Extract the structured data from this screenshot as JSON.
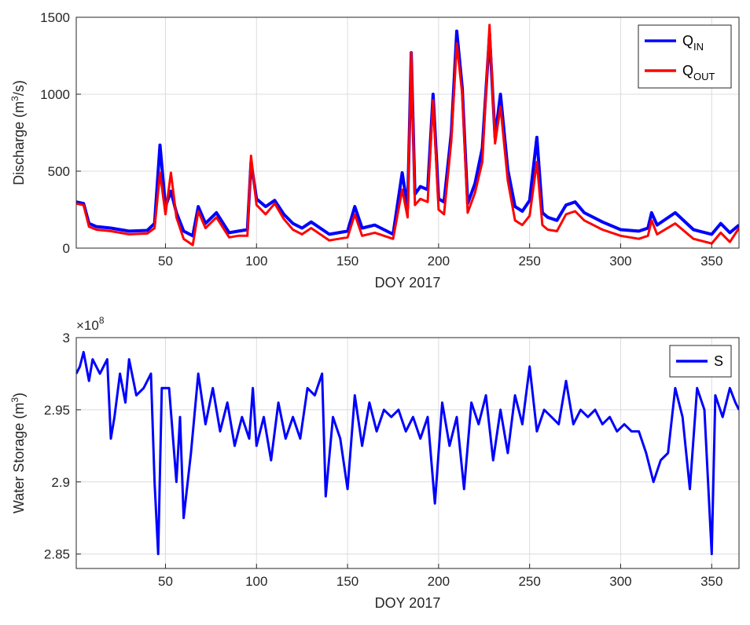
{
  "chart_data": [
    {
      "type": "line",
      "xlabel": "DOY 2017",
      "ylabel": "Discharge (m³/s)",
      "ylabel_parts": {
        "main": "Discharge (m",
        "sup": "3",
        "tail": "/s)"
      },
      "xlim": [
        1,
        365
      ],
      "ylim": [
        0,
        1500
      ],
      "xticks": [
        50,
        100,
        150,
        200,
        250,
        300,
        350
      ],
      "yticks": [
        0,
        500,
        1000,
        1500
      ],
      "grid": true,
      "legend_position": "top-right",
      "series": [
        {
          "name": "Q_IN",
          "label_main": "Q",
          "label_sub": "IN",
          "color": "#0000ff",
          "x": [
            1,
            5,
            8,
            12,
            20,
            30,
            40,
            44,
            47,
            50,
            53,
            56,
            60,
            65,
            68,
            72,
            78,
            85,
            90,
            95,
            97,
            100,
            105,
            110,
            115,
            120,
            125,
            130,
            140,
            150,
            154,
            158,
            165,
            170,
            175,
            180,
            183,
            185,
            187,
            190,
            194,
            197,
            200,
            203,
            207,
            210,
            213,
            216,
            220,
            224,
            228,
            231,
            234,
            238,
            242,
            246,
            250,
            254,
            257,
            260,
            265,
            270,
            275,
            280,
            290,
            300,
            310,
            315,
            317,
            320,
            330,
            340,
            350,
            355,
            360,
            365
          ],
          "values": [
            300,
            290,
            160,
            140,
            130,
            110,
            115,
            160,
            670,
            270,
            370,
            230,
            110,
            80,
            270,
            160,
            230,
            100,
            110,
            120,
            560,
            320,
            270,
            310,
            220,
            160,
            130,
            170,
            90,
            110,
            270,
            130,
            150,
            120,
            90,
            490,
            260,
            1270,
            350,
            400,
            380,
            1000,
            320,
            300,
            750,
            1410,
            1040,
            290,
            420,
            650,
            1390,
            720,
            1000,
            510,
            270,
            240,
            310,
            720,
            230,
            200,
            180,
            280,
            300,
            230,
            170,
            120,
            110,
            130,
            230,
            150,
            230,
            120,
            90,
            160,
            100,
            150
          ]
        },
        {
          "name": "Q_OUT",
          "label_main": "Q",
          "label_sub": "OUT",
          "color": "#ff0000",
          "x": [
            1,
            5,
            8,
            12,
            20,
            30,
            40,
            44,
            47,
            50,
            53,
            56,
            60,
            65,
            68,
            72,
            78,
            85,
            90,
            95,
            97,
            100,
            105,
            110,
            115,
            120,
            125,
            130,
            140,
            150,
            154,
            158,
            165,
            170,
            175,
            180,
            183,
            185,
            187,
            190,
            194,
            197,
            200,
            203,
            207,
            210,
            213,
            216,
            220,
            224,
            228,
            231,
            234,
            238,
            242,
            246,
            250,
            254,
            257,
            260,
            265,
            270,
            275,
            280,
            290,
            300,
            310,
            315,
            317,
            320,
            330,
            340,
            350,
            355,
            360,
            365
          ],
          "values": [
            290,
            280,
            140,
            120,
            110,
            90,
            95,
            130,
            490,
            220,
            490,
            200,
            60,
            20,
            240,
            130,
            200,
            70,
            80,
            80,
            600,
            280,
            220,
            290,
            190,
            120,
            90,
            130,
            50,
            70,
            220,
            80,
            100,
            80,
            60,
            380,
            200,
            1270,
            280,
            320,
            300,
            960,
            250,
            220,
            700,
            1330,
            1000,
            230,
            360,
            560,
            1450,
            680,
            920,
            440,
            180,
            150,
            210,
            560,
            150,
            120,
            110,
            220,
            240,
            180,
            120,
            80,
            60,
            80,
            180,
            90,
            160,
            60,
            30,
            100,
            40,
            130
          ]
        }
      ]
    },
    {
      "type": "line",
      "xlabel": "DOY 2017",
      "ylabel": "Water Storage (m³)",
      "ylabel_parts": {
        "main": "Water Storage (m",
        "sup": "3",
        "tail": ")"
      },
      "exponent_label": {
        "main": "×10",
        "sup": "8"
      },
      "xlim": [
        1,
        365
      ],
      "ylim": [
        2.84,
        3.0
      ],
      "xticks": [
        50,
        100,
        150,
        200,
        250,
        300,
        350
      ],
      "yticks": [
        2.85,
        2.9,
        2.95,
        3
      ],
      "ytick_labels": [
        "2.85",
        "2.9",
        "2.95",
        "3"
      ],
      "grid": true,
      "legend_position": "top-right",
      "series": [
        {
          "name": "S",
          "label_main": "S",
          "label_sub": "",
          "color": "#0000ff",
          "x": [
            1,
            3,
            5,
            8,
            10,
            14,
            18,
            20,
            22,
            25,
            28,
            30,
            34,
            38,
            42,
            44,
            46,
            48,
            52,
            56,
            58,
            60,
            64,
            68,
            72,
            76,
            80,
            84,
            88,
            92,
            96,
            98,
            100,
            104,
            108,
            112,
            116,
            120,
            124,
            128,
            132,
            136,
            138,
            142,
            146,
            150,
            154,
            158,
            162,
            166,
            170,
            174,
            178,
            182,
            186,
            190,
            194,
            198,
            202,
            206,
            210,
            214,
            218,
            222,
            226,
            230,
            234,
            238,
            242,
            246,
            250,
            254,
            258,
            262,
            266,
            270,
            274,
            278,
            282,
            286,
            290,
            294,
            298,
            302,
            306,
            310,
            314,
            318,
            322,
            326,
            330,
            334,
            338,
            342,
            346,
            350,
            352,
            356,
            360,
            363,
            365
          ],
          "values": [
            2.975,
            2.98,
            2.99,
            2.97,
            2.985,
            2.975,
            2.985,
            2.93,
            2.945,
            2.975,
            2.955,
            2.985,
            2.96,
            2.965,
            2.975,
            2.9,
            2.85,
            2.965,
            2.965,
            2.9,
            2.945,
            2.875,
            2.92,
            2.975,
            2.94,
            2.965,
            2.935,
            2.955,
            2.925,
            2.945,
            2.93,
            2.965,
            2.925,
            2.945,
            2.915,
            2.955,
            2.93,
            2.945,
            2.93,
            2.965,
            2.96,
            2.975,
            2.89,
            2.945,
            2.93,
            2.895,
            2.96,
            2.925,
            2.955,
            2.935,
            2.95,
            2.945,
            2.95,
            2.935,
            2.945,
            2.93,
            2.945,
            2.885,
            2.955,
            2.925,
            2.945,
            2.895,
            2.955,
            2.94,
            2.96,
            2.915,
            2.95,
            2.92,
            2.96,
            2.94,
            2.98,
            2.935,
            2.95,
            2.945,
            2.94,
            2.97,
            2.94,
            2.95,
            2.945,
            2.95,
            2.94,
            2.945,
            2.935,
            2.94,
            2.935,
            2.935,
            2.92,
            2.9,
            2.915,
            2.92,
            2.965,
            2.945,
            2.895,
            2.965,
            2.95,
            2.85,
            2.96,
            2.945,
            2.965,
            2.955,
            2.95
          ]
        }
      ]
    }
  ]
}
